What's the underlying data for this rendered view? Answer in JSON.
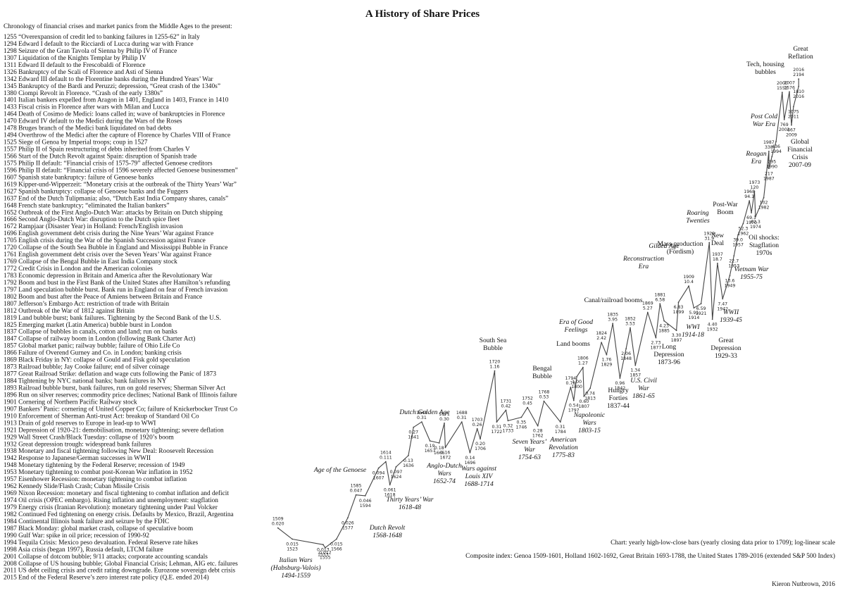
{
  "title": "A History of Share Prices",
  "chronology": {
    "heading": "Chronology of financial crises and market panics from the Middle Ages to the present:",
    "items": [
      "1255 “Overexpansion of credit led to banking failures in 1255-62” in Italy",
      "1294 Edward I default to the Ricciardi of Lucca during war with France",
      "1298 Seizure of the Gran Tavola of Sienna by Philip IV of France",
      "1307 Liquidation of the Knights Templar by Philip IV",
      "1311 Edward II default to the Frescobaldi of Florence",
      "1326 Bankruptcy of the Scali of Florence and Asti of Sienna",
      "1342 Edward III default to the Florentine banks during the Hundred Years’ War",
      "1345 Bankruptcy of the Bardi and Peruzzi; depression, “Great crash of the 1340s”",
      "1380 Ciompi Revolt in Florence. “Crash of the early 1380s”",
      "1401 Italian bankers expelled from Aragon in 1401, England in 1403, France in 1410",
      "1433 Fiscal crisis in Florence after wars with Milan and Lucca",
      "1464 Death of Cosimo de Medici: loans called in; wave of bankruptcies in Florence",
      "1470 Edward IV default to the Medici during the Wars of the Roses",
      "1478 Bruges branch of the Medici bank liquidated on bad debts",
      "1494 Overthrow of the Medici after the capture of Florence by Charles VIII of France",
      "1525 Siege of Genoa by Imperial troops; coup in 1527",
      "1557 Philip II of Spain restructuring of debts inherited from Charles V",
      "1566 Start of the Dutch Revolt against Spain: disruption of Spanish trade",
      "1575 Philip II default: “Financial crisis of 1575-79” affected Genoese creditors",
      "1596 Philip II default: “Financial crisis of 1596 severely affected Genoese businessmen”",
      "1607 Spanish state bankruptcy: failure of Genoese banks",
      "1619 Kipper-und-Wipperzeit: “Monetary crisis at the outbreak of the Thirty Years’ War”",
      "1627 Spanish bankruptcy: collapse of Genoese banks and the Fuggers",
      "1637 End of the Dutch Tulipmania; also, “Dutch East India Company shares, canals”",
      "1648 French state bankruptcy; “eliminated the Italian bankers”",
      "1652 Outbreak of the First Anglo-Dutch War: attacks by Britain on Dutch shipping",
      "1666 Second Anglo-Dutch War: disruption to the Dutch spice fleet",
      "1672 Rampjaar (Disaster Year) in Holland: French/English invasion",
      "1696 English government debt crisis during the Nine Years’ War against France",
      "1705 English crisis during the War of the Spanish Succession against France",
      "1720 Collapse of the South Sea Bubble in England and Mississippi Bubble in France",
      "1761 English government debt crisis over the Seven Years’ War against France",
      "1769 Collapse of the Bengal Bubble in East India Company stock",
      "1772 Credit Crisis in London and the American colonies",
      "1783 Economic depression in Britain and America after the Revolutionary War",
      "1792 Boom and bust in the First Bank of the United States after Hamilton’s refunding",
      "1797 Land speculation bubble burst. Bank run in England on fear of French invasion",
      "1802 Boom and bust after the Peace of Amiens between Britain and France",
      "1807 Jefferson’s Embargo Act: restriction of trade with Britain",
      "1812 Outbreak of the War of 1812 against Britain",
      "1819 Land bubble burst; bank failures. Tightening by the Second Bank of the U.S.",
      "1825 Emerging market (Latin America) bubble burst in London",
      "1837 Collapse of bubbles in canals, cotton and land; run on banks",
      "1847 Collapse of railway boom in London (following Bank Charter Act)",
      "1857 Global market panic; railway bubble; failure of Ohio Life Co",
      "1866 Failure of Overend Gurney and Co. in London; banking crisis",
      "1869 Black Friday in NY: collapse of Gould and Fisk gold speculation",
      "1873 Railroad bubble; Jay Cooke failure; end of silver coinage",
      "1877 Great Railroad Strike: deflation and wage cuts following the Panic of 1873",
      "1884 Tightening by NYC national banks; bank failures in NY",
      "1893 Railroad bubble burst, bank failures, run on gold reserves; Sherman Silver Act",
      "1896 Run on silver reserves; commodity price declines; National Bank of Illinois failure",
      "1901 Cornering of Northern Pacific Railway stock",
      "1907 Bankers’ Panic: cornering of United Copper Co; failure of Knickerbocker Trust Co",
      "1910 Enforcement of Sherman Anti-trust Act: breakup of Standard Oil Co",
      "1913 Drain of gold reserves to Europe in lead-up to WWI",
      "1921 Depression of 1920-21: demobilisation, monetary tightening; severe deflation",
      "1929 Wall Street Crash/Black Tuesday: collapse of 1920’s boom",
      "1932 Great depression trough: widespread bank failures",
      "1938 Monetary and fiscal tightening following New Deal: Roosevelt Recession",
      "1942 Response to Japanese/German successes in WWII",
      "1948 Monetary tightening by the Federal Reserve; recession of 1949",
      "1953 Monetary tightening to combat post-Korean War inflation in 1952",
      "1957 Eisenhower Recession: monetary tightening to combat inflation",
      "1962 Kennedy Slide/Flash Crash; Cuban Missile Crisis",
      "1969 Nixon Recession: monetary and fiscal tightening to combat inflation and deficit",
      "1974 Oil crisis (OPEC embargo). Rising inflation and unemployment: stagflation",
      "1979 Energy crisis (Iranian Revolution): monetary tightening under Paul Volcker",
      "1982 Continued Fed tightening on energy crisis. Defaults by Mexico, Brazil, Argentina",
      "1984 Continental Illinois bank failure and seizure by the FDIC",
      "1987 Black Monday: global market crash, collapse of speculative boom",
      "1990 Gulf War: spike in oil price; recession of 1990-92",
      "1994 Tequila Crisis: Mexico peso devaluation. Federal Reserve rate hikes",
      "1998 Asia crisis (began 1997), Russia default, LTCM failure",
      "2001 Collapse of dotcom bubble; 9/11 attacks; corporate accounting scandals",
      "2008 Collapse of US housing bubble; Global Financial Crisis; Lehman, AIG etc. failures",
      "2011 US debt ceiling crisis and credit rating downgrade. Eurozone sovereign debt crisis",
      "2015 End of the Federal Reserve’s zero interest rate policy (Q.E. ended 2014)"
    ]
  },
  "chart_data": {
    "type": "line",
    "log_scale": true,
    "color": "#444444",
    "xlim": [
      1490,
      2020
    ],
    "ylim": [
      0.008,
      3000
    ],
    "x": [
      1509,
      1523,
      1553,
      1555,
      1566,
      1577,
      1585,
      1594,
      1607,
      1614,
      1618,
      1624,
      1636,
      1641,
      1649,
      1657,
      1666,
      1671,
      1672,
      1688,
      1696,
      1703,
      1706,
      1720,
      1722,
      1731,
      1733,
      1746,
      1752,
      1762,
      1768,
      1784,
      1794,
      1797,
      1800,
      1806,
      1807,
      1813,
      1824,
      1829,
      1835,
      1842,
      1848,
      1852,
      1857,
      1869,
      1877,
      1881,
      1885,
      1897,
      1899,
      1909,
      1914,
      1921,
      1929,
      1932,
      1937,
      1942,
      1949,
      1953,
      1957,
      1962,
      1968,
      1970,
      1973,
      1974,
      1982,
      1987,
      1987,
      1990,
      1994,
      2000,
      2002,
      2007,
      2009,
      2011,
      2016,
      2016
    ],
    "values": [
      0.02,
      0.015,
      0.013,
      0.012,
      0.015,
      0.026,
      0.047,
      0.046,
      0.094,
      0.111,
      0.061,
      0.097,
      0.13,
      0.27,
      0.31,
      0.19,
      0.18,
      0.3,
      0.16,
      0.31,
      0.14,
      0.26,
      0.2,
      1.16,
      0.31,
      0.42,
      0.32,
      0.35,
      0.45,
      0.28,
      0.53,
      0.31,
      0.76,
      0.54,
      1.0,
      1.27,
      0.6,
      0.74,
      2.42,
      1.76,
      3.95,
      0.96,
      2.06,
      3.53,
      1.34,
      5.27,
      2.73,
      6.58,
      4.23,
      3.3,
      6.83,
      10.4,
      5.91,
      6.59,
      31.9,
      4.4,
      18.7,
      7.47,
      13.6,
      22.7,
      39.0,
      52.3,
      94.1,
      69.1,
      120,
      62.3,
      102,
      338,
      217,
      295,
      436,
      1553,
      769,
      1576,
      667,
      1075,
      1810,
      2194
    ],
    "value_labels": [
      "0.020",
      "0.015",
      "0.013",
      "0.012",
      "0.015",
      "0.026",
      "0.047",
      "0.046",
      "0.094",
      "0.111",
      "0.061",
      "0.097",
      "0.13",
      "0.27",
      "0.31",
      "0.19",
      "0.18",
      "0.30",
      "0.16",
      "0.31",
      "0.14",
      "0.26",
      "0.20",
      "1.16",
      "0.31",
      "0.42",
      "0.32",
      "0.35",
      "0.45",
      "0.28",
      "0.53",
      "0.31",
      "0.76",
      "0.54",
      "1.00",
      "1.27",
      "0.60",
      "0.74",
      "2.42",
      "1.76",
      "3.95",
      "0.96",
      "2.06",
      "3.53",
      "1.34",
      "5.27",
      "2.73",
      "6.58",
      "4.23",
      "3.30",
      "6.83",
      "10.4",
      "5.91",
      "6.59",
      "31.9",
      "4.40",
      "18.7",
      "7.47",
      "13.6",
      "22.7",
      "39.0",
      "52.3",
      "94.1",
      "69.1",
      "120",
      "62.3",
      "102",
      "338",
      "217",
      "295",
      "436",
      "1553",
      "769",
      "1576",
      "667",
      "1075",
      "1810",
      "2194"
    ],
    "annotations": [
      [
        "Italian Wars",
        "(Habsburg-Valois)",
        "1494-1559"
      ],
      [
        "Age of the Genoese"
      ],
      [
        "Dutch Revolt",
        "1568-1648"
      ],
      [
        "Thirty Years’ War",
        "1618-48"
      ],
      [
        "Dutch Golden Age"
      ],
      [
        "Anglo-Dutch",
        "Wars",
        "1652-74"
      ],
      [
        "Wars against",
        "Louis XIV",
        "1688-1714"
      ],
      [
        "South Sea",
        "Bubble"
      ],
      [
        "Seven Years’",
        "War",
        "1754-63"
      ],
      [
        "Bengal",
        "Bubble"
      ],
      [
        "American",
        "Revolution",
        "1775-83"
      ],
      [
        "Land booms"
      ],
      [
        "Napoleonic",
        "Wars",
        "1803-15"
      ],
      [
        "Era of Good",
        "Feelings"
      ],
      [
        "Hungry",
        "Forties",
        "1837-44"
      ],
      [
        "Canal/railroad booms"
      ],
      [
        "U.S. Civil",
        "War",
        "1861-65"
      ],
      [
        "Reconstruction",
        "Era"
      ],
      [
        "Long",
        "Depression",
        "1873-96"
      ],
      [
        "Gilded Age"
      ],
      [
        "Mass-production",
        "(Fordism)"
      ],
      [
        "Roaring",
        "Twenties"
      ],
      [
        "WWI",
        "1914-18"
      ],
      [
        "New",
        "Deal"
      ],
      [
        "Great",
        "Depression",
        "1929-33"
      ],
      [
        "WWII",
        "1939-45"
      ],
      [
        "Post-War",
        "Boom"
      ],
      [
        "Vietnam War",
        "1955-75"
      ],
      [
        "Oil shocks:",
        "Stagflation",
        "1970s"
      ],
      [
        "Reagan",
        "Era"
      ],
      [
        "Post Cold",
        "War Era"
      ],
      [
        "Global",
        "Financial",
        "Crisis",
        "2007-09"
      ],
      [
        "Tech, housing",
        "bubbles"
      ],
      [
        "Great",
        "Reflation"
      ]
    ]
  },
  "notes": [
    "Chart: yearly high-low-close bars (yearly closing data prior to 1709); log-linear scale",
    "Composite index: Genoa 1509-1601, Holland 1602-1692, Great Britain 1693-1788, the United States 1789-2016 (extended S&P 500 Index)"
  ],
  "credit": "Kieron Nutbrown, 2016"
}
